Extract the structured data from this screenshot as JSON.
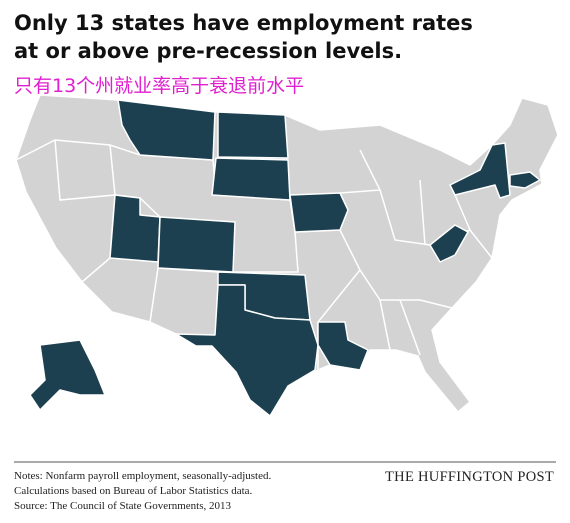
{
  "header": {
    "title_lines": [
      "Only 13 states have employment rates",
      "at or above pre-recession levels."
    ],
    "subtitle": "只有13个州就业率高于衰退前水平",
    "subtitle_color": "#e020d0"
  },
  "map": {
    "base_color": "#d3d3d3",
    "highlight_color": "#1c4050"
  },
  "footer": {
    "notes": [
      "Notes: Nonfarm payroll employment, seasonally-adjusted.",
      "Calculations based on Bureau of Labor Statistics data.",
      "Source: The Council of State Governments, 2013"
    ],
    "brand": "THE HUFFINGTON POST"
  }
}
